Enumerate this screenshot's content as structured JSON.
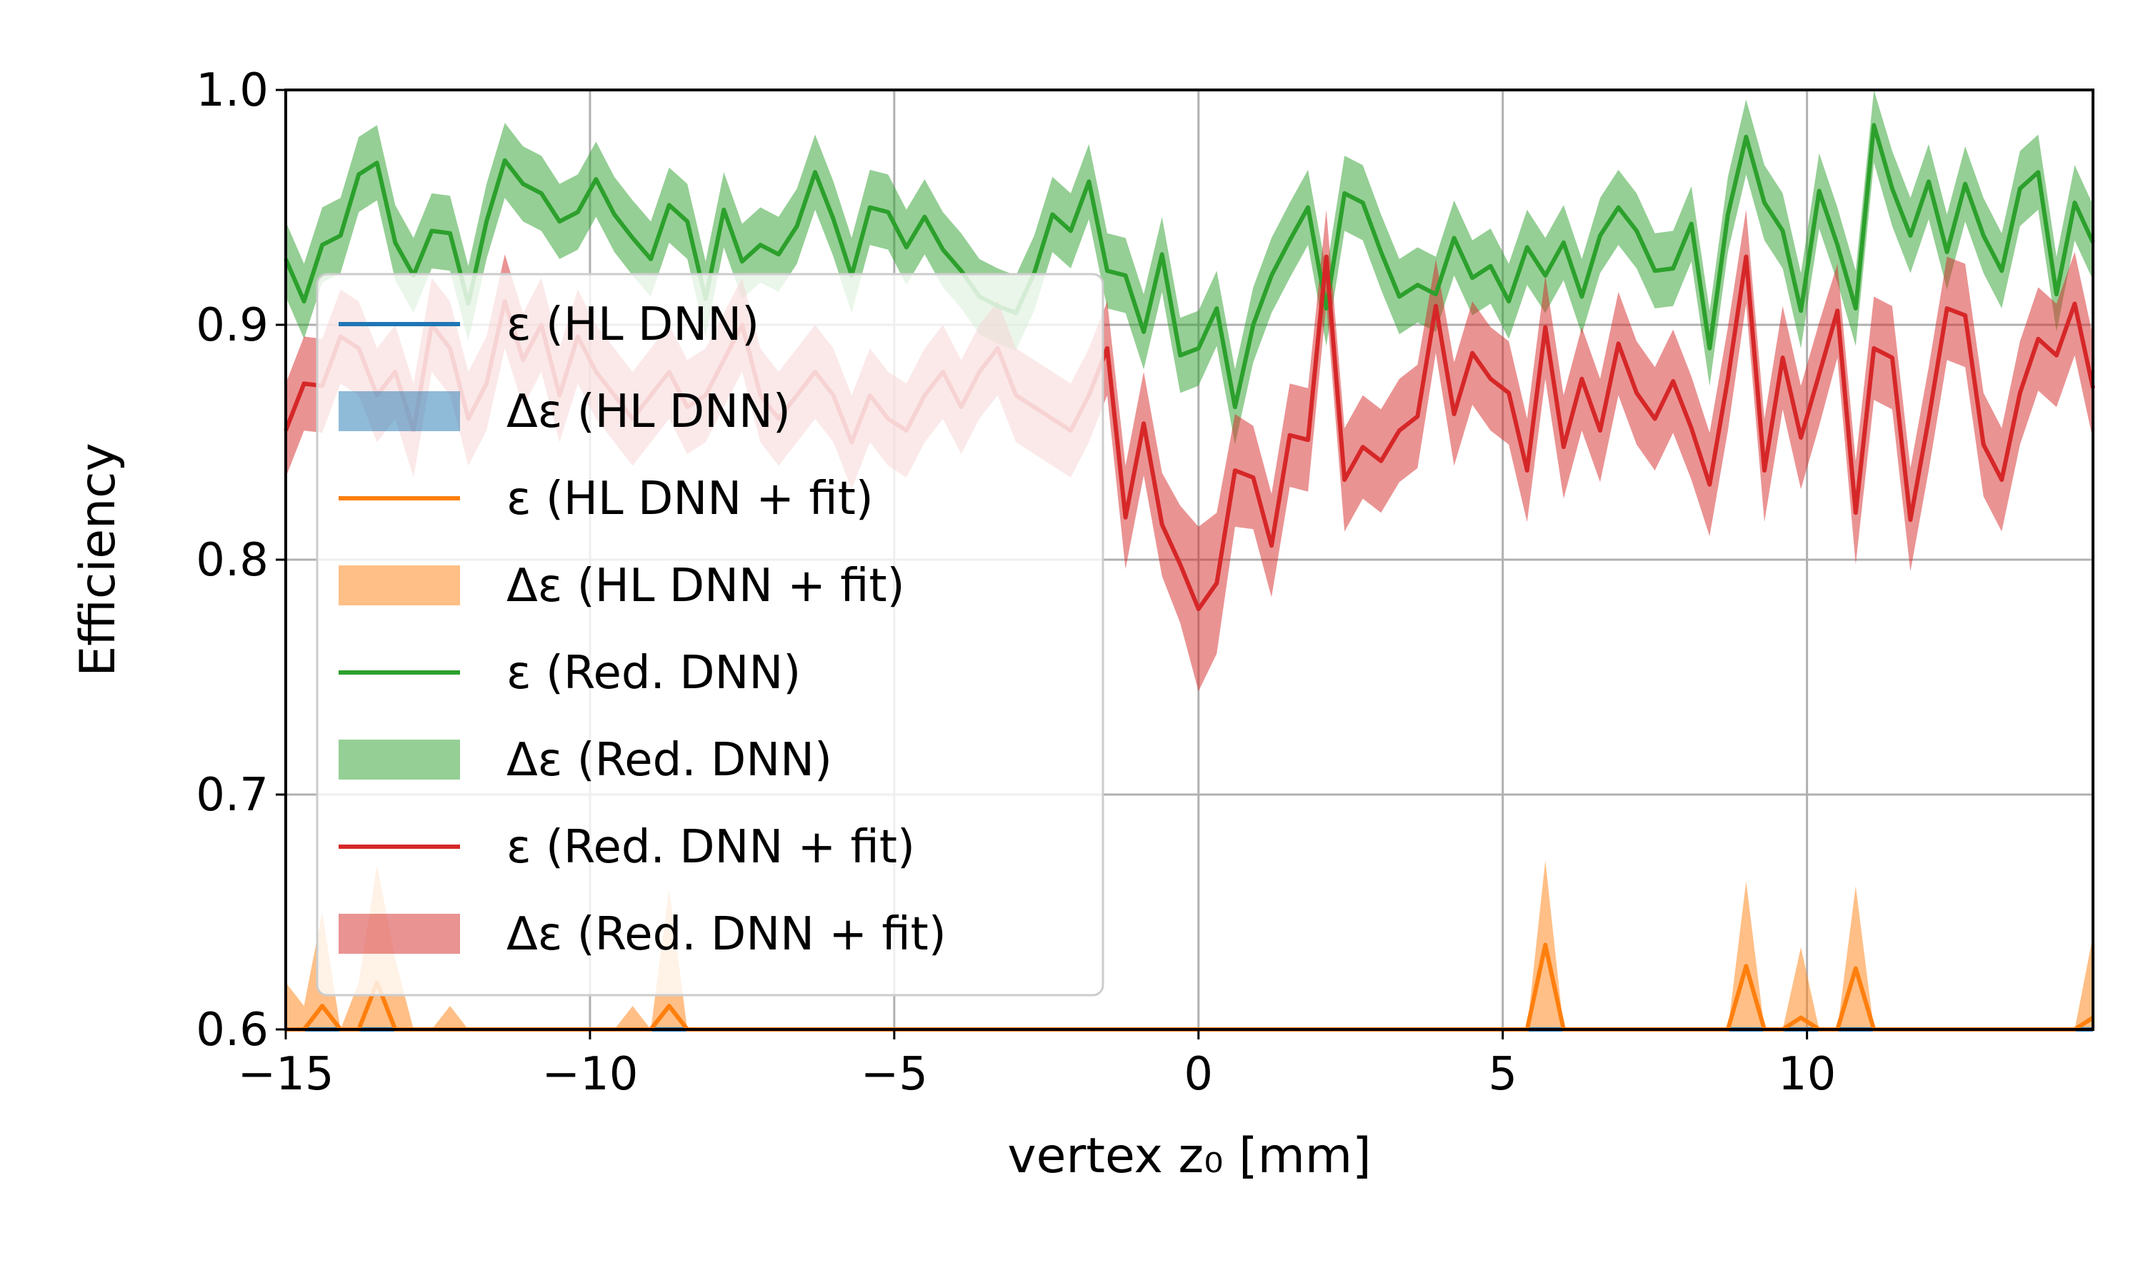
{
  "chart_data": {
    "type": "line",
    "title": "",
    "xlabel": "vertex z₀ [mm]",
    "ylabel": "Efficiency",
    "xlim": [
      -15,
      14.7
    ],
    "ylim": [
      0.6,
      1.0
    ],
    "xticks": [
      -15,
      -10,
      -5,
      0,
      5,
      10
    ],
    "xtick_labels": [
      "−15",
      "−10",
      "−5",
      "0",
      "5",
      "10"
    ],
    "yticks": [
      0.6,
      0.7,
      0.8,
      0.9,
      1.0
    ],
    "ytick_labels": [
      "0.6",
      "0.7",
      "0.8",
      "0.9",
      "1.0"
    ],
    "grid": true,
    "legend_position": "left",
    "x": [
      -15.0,
      -14.7,
      -14.4,
      -14.1,
      -13.8,
      -13.5,
      -13.2,
      -12.9,
      -12.6,
      -12.3,
      -12.0,
      -11.7,
      -11.4,
      -11.1,
      -10.8,
      -10.5,
      -10.2,
      -9.9,
      -9.6,
      -9.3,
      -9.0,
      -8.7,
      -8.4,
      -8.1,
      -7.8,
      -7.5,
      -7.2,
      -6.9,
      -6.6,
      -6.3,
      -6.0,
      -5.7,
      -5.4,
      -5.1,
      -4.8,
      -4.5,
      -4.2,
      -3.9,
      -3.6,
      -3.3,
      -3.0,
      -2.7,
      -2.4,
      -2.1,
      -1.8,
      -1.5,
      -1.2,
      -0.9,
      -0.6,
      -0.3,
      0.0,
      0.3,
      0.6,
      0.9,
      1.2,
      1.5,
      1.8,
      2.1,
      2.4,
      2.7,
      3.0,
      3.3,
      3.6,
      3.9,
      4.2,
      4.5,
      4.8,
      5.1,
      5.4,
      5.7,
      6.0,
      6.3,
      6.6,
      6.9,
      7.2,
      7.5,
      7.8,
      8.1,
      8.4,
      8.7,
      9.0,
      9.3,
      9.6,
      9.9,
      10.2,
      10.5,
      10.8,
      11.1,
      11.4,
      11.7,
      12.0,
      12.3,
      12.6,
      12.9,
      13.2,
      13.5,
      13.8,
      14.1,
      14.4,
      14.7
    ],
    "series": [
      {
        "name": "ε (HL DNN)",
        "band_name": "Δε (HL DNN)",
        "color": "#1f77b4",
        "band_color": "#1f77b4",
        "band_opacity": 0.5,
        "values": [
          0.6,
          0.6,
          0.6,
          0.6,
          0.6,
          0.6,
          0.6,
          0.6,
          0.6,
          0.6,
          0.6,
          0.6,
          0.6,
          0.6,
          0.6,
          0.6,
          0.6,
          0.6,
          0.6,
          0.6,
          0.6,
          0.6,
          0.6,
          0.6,
          0.6,
          0.6,
          0.6,
          0.6,
          0.6,
          0.6,
          0.6,
          0.6,
          0.6,
          0.6,
          0.6,
          0.6,
          0.6,
          0.6,
          0.6,
          0.6,
          0.6,
          0.6,
          0.6,
          0.6,
          0.6,
          0.6,
          0.6,
          0.6,
          0.6,
          0.6,
          0.6,
          0.6,
          0.6,
          0.6,
          0.6,
          0.6,
          0.6,
          0.6,
          0.6,
          0.6,
          0.6,
          0.6,
          0.6,
          0.6,
          0.6,
          0.6,
          0.6,
          0.6,
          0.6,
          0.6,
          0.6,
          0.6,
          0.6,
          0.6,
          0.6,
          0.6,
          0.6,
          0.6,
          0.6,
          0.6,
          0.6,
          0.6,
          0.6,
          0.6,
          0.6,
          0.6,
          0.6,
          0.6,
          0.6,
          0.6,
          0.6,
          0.6,
          0.6,
          0.6,
          0.6,
          0.6,
          0.6,
          0.6,
          0.6,
          0.6
        ],
        "errors": [
          0,
          0,
          0,
          0,
          0,
          0,
          0,
          0,
          0,
          0,
          0,
          0,
          0,
          0,
          0,
          0,
          0,
          0,
          0,
          0,
          0,
          0,
          0,
          0,
          0,
          0,
          0,
          0,
          0,
          0,
          0,
          0,
          0,
          0,
          0,
          0,
          0,
          0,
          0,
          0,
          0,
          0,
          0,
          0,
          0,
          0,
          0,
          0,
          0,
          0,
          0,
          0,
          0,
          0,
          0,
          0,
          0,
          0,
          0,
          0,
          0,
          0,
          0,
          0,
          0,
          0,
          0,
          0,
          0,
          0,
          0,
          0,
          0,
          0,
          0,
          0,
          0,
          0,
          0,
          0,
          0,
          0,
          0,
          0,
          0,
          0,
          0,
          0,
          0,
          0,
          0,
          0,
          0,
          0,
          0,
          0,
          0,
          0,
          0,
          0
        ]
      },
      {
        "name": "ε (HL DNN + fit)",
        "band_name": "Δε (HL DNN + fit)",
        "color": "#ff7f0e",
        "band_color": "#ff7f0e",
        "band_opacity": 0.5,
        "values": [
          0.6,
          0.6,
          0.61,
          0.6,
          0.6,
          0.62,
          0.6,
          0.6,
          0.6,
          0.6,
          0.6,
          0.6,
          0.6,
          0.6,
          0.6,
          0.6,
          0.6,
          0.6,
          0.6,
          0.6,
          0.6,
          0.61,
          0.6,
          0.6,
          0.6,
          0.6,
          0.6,
          0.6,
          0.6,
          0.6,
          0.6,
          0.6,
          0.6,
          0.6,
          0.6,
          0.6,
          0.6,
          0.6,
          0.6,
          0.6,
          0.6,
          0.6,
          0.6,
          0.6,
          0.6,
          0.6,
          0.6,
          0.6,
          0.6,
          0.6,
          0.6,
          0.6,
          0.6,
          0.6,
          0.6,
          0.6,
          0.6,
          0.6,
          0.6,
          0.6,
          0.6,
          0.6,
          0.6,
          0.6,
          0.6,
          0.6,
          0.6,
          0.6,
          0.6,
          0.636,
          0.6,
          0.6,
          0.6,
          0.6,
          0.6,
          0.6,
          0.6,
          0.6,
          0.6,
          0.6,
          0.627,
          0.6,
          0.6,
          0.605,
          0.6,
          0.6,
          0.626,
          0.6,
          0.6,
          0.6,
          0.6,
          0.6,
          0.6,
          0.6,
          0.6,
          0.6,
          0.6,
          0.6,
          0.6,
          0.605
        ],
        "errors": [
          0.02,
          0.01,
          0.04,
          0.0,
          0.02,
          0.05,
          0.03,
          0.0,
          0.0,
          0.01,
          0.0,
          0.0,
          0.0,
          0.0,
          0.0,
          0.0,
          0.0,
          0.0,
          0.0,
          0.01,
          0.0,
          0.05,
          0.0,
          0.0,
          0.0,
          0.0,
          0.0,
          0.0,
          0.0,
          0.0,
          0.0,
          0.0,
          0.0,
          0.0,
          0.0,
          0.0,
          0.0,
          0.0,
          0.0,
          0.0,
          0.0,
          0.0,
          0.0,
          0.0,
          0.0,
          0.0,
          0.0,
          0.0,
          0.0,
          0.0,
          0.0,
          0.0,
          0.0,
          0.0,
          0.0,
          0.0,
          0.0,
          0.0,
          0.0,
          0.0,
          0.0,
          0.0,
          0.0,
          0.0,
          0.0,
          0.0,
          0.0,
          0.0,
          0.0,
          0.036,
          0.0,
          0.0,
          0.0,
          0.0,
          0.0,
          0.0,
          0.0,
          0.0,
          0.0,
          0.0,
          0.036,
          0.0,
          0.0,
          0.03,
          0.0,
          0.0,
          0.035,
          0.0,
          0.0,
          0.0,
          0.0,
          0.0,
          0.0,
          0.0,
          0.0,
          0.0,
          0.0,
          0.0,
          0.0,
          0.035
        ]
      },
      {
        "name": "ε (Red. DNN)",
        "band_name": "Δε (Red. DNN)",
        "color": "#2ca02c",
        "band_color": "#2ca02c",
        "band_opacity": 0.5,
        "values": [
          0.928,
          0.91,
          0.934,
          0.938,
          0.964,
          0.969,
          0.935,
          0.921,
          0.94,
          0.939,
          0.909,
          0.944,
          0.97,
          0.96,
          0.956,
          0.944,
          0.948,
          0.962,
          0.947,
          0.937,
          0.928,
          0.951,
          0.944,
          0.911,
          0.949,
          0.927,
          0.934,
          0.93,
          0.942,
          0.965,
          0.945,
          0.921,
          0.95,
          0.948,
          0.933,
          0.946,
          0.932,
          0.923,
          0.912,
          0.908,
          0.905,
          0.922,
          0.947,
          0.94,
          0.961,
          0.923,
          0.921,
          0.897,
          0.93,
          0.887,
          0.89,
          0.907,
          0.865,
          0.9,
          0.921,
          0.936,
          0.95,
          0.907,
          0.956,
          0.952,
          0.931,
          0.912,
          0.917,
          0.913,
          0.937,
          0.92,
          0.925,
          0.91,
          0.933,
          0.921,
          0.935,
          0.912,
          0.938,
          0.95,
          0.94,
          0.923,
          0.924,
          0.943,
          0.89,
          0.947,
          0.98,
          0.952,
          0.94,
          0.906,
          0.957,
          0.934,
          0.907,
          0.985,
          0.958,
          0.938,
          0.961,
          0.931,
          0.96,
          0.938,
          0.923,
          0.958,
          0.965,
          0.913,
          0.952,
          0.935
        ],
        "errors": [
          0.016,
          0.016,
          0.016,
          0.016,
          0.016,
          0.016,
          0.016,
          0.016,
          0.016,
          0.016,
          0.016,
          0.016,
          0.016,
          0.016,
          0.016,
          0.016,
          0.016,
          0.016,
          0.016,
          0.016,
          0.016,
          0.016,
          0.016,
          0.016,
          0.016,
          0.016,
          0.016,
          0.016,
          0.016,
          0.016,
          0.016,
          0.016,
          0.016,
          0.016,
          0.016,
          0.016,
          0.016,
          0.016,
          0.016,
          0.016,
          0.016,
          0.016,
          0.016,
          0.016,
          0.016,
          0.016,
          0.016,
          0.016,
          0.016,
          0.016,
          0.016,
          0.016,
          0.016,
          0.016,
          0.016,
          0.016,
          0.016,
          0.016,
          0.016,
          0.016,
          0.016,
          0.016,
          0.016,
          0.016,
          0.016,
          0.016,
          0.016,
          0.016,
          0.016,
          0.016,
          0.016,
          0.016,
          0.016,
          0.016,
          0.016,
          0.016,
          0.016,
          0.016,
          0.016,
          0.016,
          0.016,
          0.016,
          0.016,
          0.016,
          0.016,
          0.016,
          0.016,
          0.016,
          0.016,
          0.016,
          0.016,
          0.016,
          0.016,
          0.016,
          0.016,
          0.016,
          0.016,
          0.016,
          0.016,
          0.016
        ]
      },
      {
        "name": "ε (Red. DNN + fit)",
        "band_name": "Δε (Red. DNN + fit)",
        "color": "#d62728",
        "band_color": "#d62728",
        "band_opacity": 0.5,
        "values": [
          0.855,
          0.875,
          0.874,
          0.895,
          0.89,
          0.87,
          0.88,
          0.855,
          0.9,
          0.89,
          0.86,
          0.875,
          0.91,
          0.885,
          0.9,
          0.87,
          0.895,
          0.88,
          0.87,
          0.86,
          0.87,
          0.88,
          0.865,
          0.87,
          0.885,
          0.9,
          0.87,
          0.86,
          0.87,
          0.88,
          0.87,
          0.85,
          0.87,
          0.86,
          0.855,
          0.87,
          0.88,
          0.865,
          0.88,
          0.89,
          0.87,
          0.865,
          0.86,
          0.855,
          0.87,
          0.89,
          0.818,
          0.858,
          0.815,
          0.798,
          0.779,
          0.79,
          0.838,
          0.835,
          0.806,
          0.853,
          0.851,
          0.929,
          0.834,
          0.848,
          0.842,
          0.855,
          0.861,
          0.908,
          0.862,
          0.888,
          0.877,
          0.871,
          0.838,
          0.899,
          0.848,
          0.877,
          0.855,
          0.892,
          0.871,
          0.86,
          0.876,
          0.856,
          0.832,
          0.877,
          0.929,
          0.838,
          0.886,
          0.852,
          0.879,
          0.906,
          0.82,
          0.89,
          0.886,
          0.817,
          0.86,
          0.907,
          0.904,
          0.849,
          0.834,
          0.871,
          0.894,
          0.887,
          0.909,
          0.873
        ],
        "errors": [
          0.02,
          0.02,
          0.02,
          0.02,
          0.02,
          0.02,
          0.02,
          0.02,
          0.02,
          0.02,
          0.02,
          0.02,
          0.02,
          0.02,
          0.02,
          0.02,
          0.02,
          0.02,
          0.02,
          0.02,
          0.02,
          0.02,
          0.02,
          0.02,
          0.02,
          0.02,
          0.02,
          0.02,
          0.02,
          0.02,
          0.02,
          0.02,
          0.02,
          0.02,
          0.02,
          0.02,
          0.02,
          0.02,
          0.02,
          0.02,
          0.02,
          0.02,
          0.02,
          0.02,
          0.02,
          0.02,
          0.022,
          0.022,
          0.022,
          0.025,
          0.035,
          0.03,
          0.024,
          0.022,
          0.022,
          0.022,
          0.022,
          0.02,
          0.022,
          0.022,
          0.022,
          0.022,
          0.022,
          0.02,
          0.022,
          0.022,
          0.022,
          0.022,
          0.022,
          0.022,
          0.022,
          0.022,
          0.022,
          0.022,
          0.022,
          0.022,
          0.022,
          0.022,
          0.022,
          0.022,
          0.02,
          0.022,
          0.022,
          0.022,
          0.022,
          0.02,
          0.022,
          0.022,
          0.022,
          0.022,
          0.022,
          0.022,
          0.022,
          0.022,
          0.022,
          0.022,
          0.022,
          0.022,
          0.022,
          0.022
        ]
      }
    ],
    "legend": [
      {
        "label": "ε (HL DNN)",
        "kind": "line",
        "color": "#1f77b4"
      },
      {
        "label": "Δε (HL DNN)",
        "kind": "band",
        "color": "#1f77b4"
      },
      {
        "label": "ε (HL DNN + fit)",
        "kind": "line",
        "color": "#ff7f0e"
      },
      {
        "label": "Δε (HL DNN + fit)",
        "kind": "band",
        "color": "#ff7f0e"
      },
      {
        "label": "ε (Red. DNN)",
        "kind": "line",
        "color": "#2ca02c"
      },
      {
        "label": "Δε (Red. DNN)",
        "kind": "band",
        "color": "#2ca02c"
      },
      {
        "label": "ε (Red. DNN + fit)",
        "kind": "line",
        "color": "#d62728"
      },
      {
        "label": "Δε (Red. DNN + fit)",
        "kind": "band",
        "color": "#d62728"
      }
    ]
  }
}
